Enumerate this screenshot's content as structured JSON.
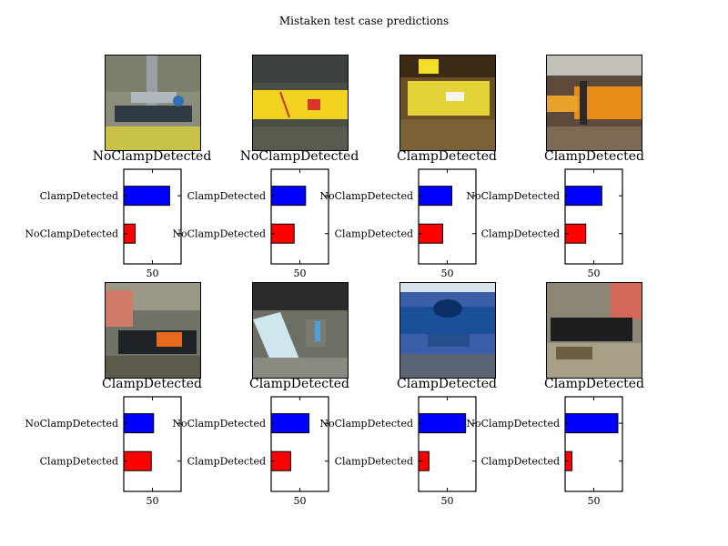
{
  "title": "Mistaken test case predictions",
  "colors": {
    "bar_top": "#0000ff",
    "bar_bottom": "#ff0000",
    "axis": "#000000",
    "background": "#ffffff"
  },
  "chart_data": [
    {
      "type": "bar",
      "orientation": "horizontal",
      "image_caption": "NoClampDetected",
      "categories": [
        "NoClampDetected",
        "ClampDetected"
      ],
      "values": [
        20,
        80
      ],
      "xlim": [
        0,
        100
      ],
      "xticks": [
        50
      ]
    },
    {
      "type": "bar",
      "orientation": "horizontal",
      "image_caption": "NoClampDetected",
      "categories": [
        "NoClampDetected",
        "ClampDetected"
      ],
      "values": [
        40,
        60
      ],
      "xlim": [
        0,
        100
      ],
      "xticks": [
        50
      ]
    },
    {
      "type": "bar",
      "orientation": "horizontal",
      "image_caption": "ClampDetected",
      "categories": [
        "ClampDetected",
        "NoClampDetected"
      ],
      "values": [
        42,
        58
      ],
      "xlim": [
        0,
        100
      ],
      "xticks": [
        50
      ]
    },
    {
      "type": "bar",
      "orientation": "horizontal",
      "image_caption": "ClampDetected",
      "categories": [
        "ClampDetected",
        "NoClampDetected"
      ],
      "values": [
        36,
        64
      ],
      "xlim": [
        0,
        100
      ],
      "xticks": [
        50
      ]
    },
    {
      "type": "bar",
      "orientation": "horizontal",
      "image_caption": "ClampDetected",
      "categories": [
        "ClampDetected",
        "NoClampDetected"
      ],
      "values": [
        48,
        52
      ],
      "xlim": [
        0,
        100
      ],
      "xticks": [
        50
      ]
    },
    {
      "type": "bar",
      "orientation": "horizontal",
      "image_caption": "ClampDetected",
      "categories": [
        "ClampDetected",
        "NoClampDetected"
      ],
      "values": [
        34,
        66
      ],
      "xlim": [
        0,
        100
      ],
      "xticks": [
        50
      ]
    },
    {
      "type": "bar",
      "orientation": "horizontal",
      "image_caption": "ClampDetected",
      "categories": [
        "ClampDetected",
        "NoClampDetected"
      ],
      "values": [
        18,
        82
      ],
      "xlim": [
        0,
        100
      ],
      "xticks": [
        50
      ]
    },
    {
      "type": "bar",
      "orientation": "horizontal",
      "image_caption": "ClampDetected",
      "categories": [
        "ClampDetected",
        "NoClampDetected"
      ],
      "values": [
        12,
        92
      ],
      "xlim": [
        0,
        100
      ],
      "xticks": [
        50
      ]
    }
  ]
}
